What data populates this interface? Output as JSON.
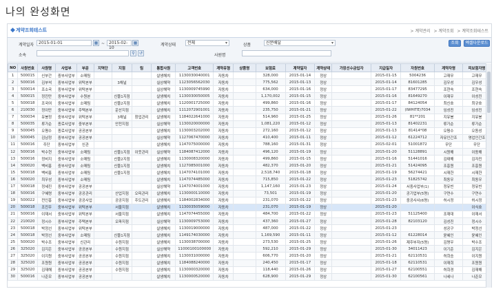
{
  "page_heading": "나의 완성화면",
  "window": {
    "title": "계약조회테스트"
  },
  "breadcrumb": [
    "> 계약관리",
    "> 계약조회",
    "> 계약조회테스트"
  ],
  "search": {
    "contract_date_label": "계약일자",
    "date_from": "2015-01-01",
    "date_to": "2015-02-10",
    "separator": "~",
    "contract_type_label": "계약상태",
    "contract_type_value": "전체",
    "item_label": "상품",
    "item_value": "신문배달",
    "org_label": "소속",
    "agent_label": "사원명",
    "search_button": "조회",
    "excel_button": "엑셀다운로드"
  },
  "table": {
    "columns": [
      "NO",
      "사원번호",
      "사원명",
      "사업부",
      "부문",
      "지역단",
      "지점",
      "팀",
      "통합사원",
      "고객번호",
      "계약유형",
      "상품명",
      "보험료",
      "계약일자",
      "계약상태",
      "가장선수금입자",
      "지급일자",
      "자원번호",
      "계약자명",
      "피보험자명"
    ],
    "rows": [
      [
        "1",
        "500015",
        "신부간",
        "중부사업부",
        "소매팀",
        "",
        "",
        "",
        "살생해치",
        "1130030040001",
        "자동차",
        "",
        "328,000",
        "2015-01-14",
        "정상",
        "",
        "2015-01-15",
        "5004236",
        "고재무",
        "고재무"
      ],
      [
        "2",
        "500016",
        "김부석",
        "중부사업부",
        "위탁본부",
        "",
        "3채널",
        "",
        "실상해약",
        "1123056562030",
        "자동차",
        "",
        "775,562",
        "2015-01-13",
        "정상",
        "",
        "2015-01-14",
        "81601285",
        "김우성",
        "김우성"
      ],
      [
        "3",
        "500014",
        "조소국",
        "중부사업부",
        "위탁본부",
        "",
        "",
        "",
        "실상해약",
        "1130009745990",
        "자동차",
        "",
        "634,000",
        "2015-01-16",
        "정상",
        "",
        "2015-01-17",
        "83477295",
        "조현숙",
        "조현숙"
      ],
      [
        "4",
        "500015",
        "정진만",
        "중부사업부",
        "수원본",
        "",
        "신뜰1지점",
        "",
        "살생해치",
        "1130030050005",
        "자동차",
        "",
        "1,170,002",
        "2015-01-15",
        "정상",
        "",
        "2015-01-16",
        "81649270",
        "이재우",
        "이성진"
      ],
      [
        "5",
        "500018",
        "조국여",
        "중부사업부",
        "소매팀",
        "",
        "신뜰2지점",
        "",
        "살생해치",
        "1120001725000",
        "자동차",
        "",
        "499,860",
        "2015-01-16",
        "정상",
        "",
        "2015-01-17",
        "84124054",
        "최신호",
        "최규호"
      ],
      [
        "6",
        "210030",
        "정이만",
        "중부사업부",
        "주택본부",
        "",
        "운산지점",
        "",
        "살생해치",
        "1112072901001",
        "자동차",
        "",
        "235,750",
        "2015-01-21",
        "정상",
        "",
        "2015-01-22",
        "(IWHITE)7034",
        "임성진",
        "임성진"
      ],
      [
        "7",
        "500034",
        "유봉정",
        "중부사업부",
        "위탁본부",
        "",
        "3채널",
        "창업관리",
        "살생해치",
        "1184022641000",
        "자동차",
        "",
        "514,960",
        "2015-01-25",
        "정상",
        "",
        "2015-01-26",
        "81**201",
        "지유봉",
        "지유봉"
      ],
      [
        "8",
        "500035",
        "류가순",
        "종로사업부",
        "중부본부",
        "",
        "안전지점",
        "",
        "실상해약",
        "1130020000000",
        "자동차",
        "",
        "1,081,220",
        "2015-01-12",
        "정상",
        "",
        "2015-01-13",
        "81402231",
        "류가순",
        "류가순"
      ],
      [
        "9",
        "500045",
        "오평수",
        "종로사업부",
        "공공본부",
        "",
        "",
        "",
        "살생해치",
        "1130003202000",
        "자동차",
        "",
        "272,160",
        "2015-01-12",
        "정상",
        "",
        "2015-01-13",
        "81414*08",
        "오평수",
        "오동성"
      ],
      [
        "10",
        "500045",
        "김남정",
        "중부사업부",
        "공공본부",
        "",
        "",
        "",
        "실상해약",
        "1127067470000",
        "자동차",
        "",
        "410,400",
        "2015-01-11",
        "정상",
        "",
        "2015-01-12",
        "61224712",
        "자유인간조",
        "영업인간조"
      ],
      [
        "11",
        "500016",
        "주단",
        "중부사업부",
        "신관",
        "",
        "",
        "",
        "살생해치",
        "1147075000000",
        "자동차",
        "",
        "788,160",
        "2015-01-31",
        "정상",
        "",
        "2015-02-01",
        "51001872",
        "우단",
        "우단"
      ],
      [
        "12",
        "500016",
        "박수현",
        "중부사업부",
        "소매팀",
        "",
        "신뜰1지점",
        "이웃관리",
        "실상해약",
        "1184087412000",
        "자동차",
        "",
        "496,120",
        "2015-01-19",
        "정상",
        "",
        "2015-01-20",
        "51128891",
        "시원해",
        "이동해"
      ],
      [
        "13",
        "500016",
        "정비지",
        "중부사업부",
        "소매팀",
        "",
        "신뜰2지점",
        "",
        "살생해치",
        "1130008320000",
        "자동차",
        "",
        "499,860",
        "2015-01-15",
        "정상",
        "",
        "2015-01-16",
        "51441016",
        "김태해",
        "김자진"
      ],
      [
        "14",
        "500020",
        "백비홍",
        "중부사업부",
        "소매팀",
        "",
        "신뜰1지점",
        "",
        "살생해치",
        "1127085001000",
        "자동차",
        "",
        "482,370",
        "2015-01-20",
        "정상",
        "",
        "2015-01-21",
        "51424095",
        "조흥원",
        "조흥원"
      ],
      [
        "15",
        "500018",
        "백비홍",
        "중부사업부",
        "소매팀",
        "",
        "신뜰1지점",
        "",
        "살생해치",
        "1147074101000",
        "자동차",
        "",
        "2,518,740",
        "2015-01-18",
        "정상",
        "",
        "2015-01-19",
        "56274421",
        "시재한",
        "시재한"
      ],
      [
        "16",
        "500020",
        "최우성",
        "중부사업부",
        "소매팀",
        "",
        "",
        "",
        "살생해치",
        "1147074485000",
        "자동차",
        "",
        "715,850",
        "2015-01-22",
        "정상",
        "",
        "2015-01-23",
        "51825742",
        "최동우",
        "최동우"
      ],
      [
        "17",
        "500018",
        "정세진",
        "중부사업부",
        "공공본부",
        "",
        "",
        "",
        "실상해약",
        "1147074001000",
        "자동차",
        "",
        "1,147,160",
        "2015-01-23",
        "정상",
        "",
        "2015-01-24",
        "서중사업부(1)",
        "정유빈",
        "정유빈"
      ],
      [
        "18",
        "500016",
        "구혜령",
        "중부사업부",
        "공공관리",
        "",
        "산업지점",
        "오피관리",
        "살생해치",
        "1130000110000",
        "자동차",
        "",
        "73,501",
        "2015-01-19",
        "정상",
        "",
        "2015-01-20",
        "공기업부(5명)",
        "구연수",
        "구연수"
      ],
      [
        "19",
        "500022",
        "전인흥",
        "중부사업부",
        "공공사업",
        "",
        "공공지점",
        "주도관리",
        "살생해치",
        "1184002834000",
        "자동차",
        "",
        "231,070",
        "2015-01-22",
        "정상",
        "",
        "2015-01-23",
        "중공사사(6명)",
        "허시정",
        "허시정"
      ],
      [
        "20",
        "500018",
        "조진우",
        "중부사업부",
        "위탁본부",
        "",
        "서울지점",
        "",
        "살생해치",
        "1130035059000",
        "자동차",
        "",
        "231,070",
        "2015-01-19",
        "정상",
        "",
        "2015-01-20",
        "",
        "",
        "이식호"
      ],
      [
        "21",
        "500016",
        "이재서",
        "중부사업부",
        "위탁본부",
        "",
        "서울지점",
        "",
        "살생해치",
        "1147074455000",
        "자동차",
        "",
        "484,700",
        "2015-01-22",
        "정상",
        "",
        "2015-01-23",
        "51125400",
        "조재대",
        "이재서"
      ],
      [
        "22",
        "210020",
        "정시수",
        "중부사업부",
        "주택본부",
        "",
        "오파지점",
        "",
        "실상해약",
        "1130009753000",
        "자동차",
        "",
        "437,360",
        "2015-01-27",
        "정상",
        "",
        "2015-01-28",
        "82103120",
        "김성진",
        "정시수"
      ],
      [
        "23",
        "500018",
        "박정선",
        "중부사업부",
        "위탁본부",
        "",
        "",
        "",
        "살생해치",
        "1130019000000",
        "자동차",
        "",
        "487,000",
        "2015-01-22",
        "정상",
        "",
        "2015-01-23",
        "",
        "성공구",
        "박정선"
      ],
      [
        "24",
        "500018",
        "박정선",
        "중부사업부",
        "소매팀",
        "",
        "신뜰1지점",
        "",
        "살생해치",
        "1149174030000",
        "자동차",
        "",
        "1,169,590",
        "2015-01-11",
        "정상",
        "",
        "2015-01-12",
        "61228014",
        "윤혜인",
        "윤혜인"
      ],
      [
        "25",
        "500020",
        "박수조",
        "중부사업부",
        "신관리",
        "",
        "수원지점",
        "",
        "살생해치",
        "1130038700000",
        "자동차",
        "",
        "273,530",
        "2015-01-25",
        "정상",
        "",
        "2015-01-26",
        "제주부자(5명)",
        "김명우",
        "박수조"
      ],
      [
        "26",
        "325020",
        "김지은",
        "중부사업부",
        "공공본부",
        "",
        "수원지점",
        "",
        "실상해약",
        "11000100100000",
        "자동차",
        "",
        "592,210",
        "2015-01-29",
        "정상",
        "",
        "2015-01-30",
        "34011423",
        "이기준",
        "김지은"
      ],
      [
        "27",
        "325020",
        "이지원",
        "중부사업부",
        "공공본부",
        "",
        "수원지점",
        "",
        "살생해치",
        "1130031000000",
        "자동차",
        "",
        "606,770",
        "2015-01-20",
        "정상",
        "",
        "2015-01-21",
        "62110531",
        "허희승",
        "이지원"
      ],
      [
        "28",
        "325020",
        "조원원",
        "중부사업부",
        "공공본부",
        "",
        "수원지점",
        "",
        "살생해치",
        "1184088240000",
        "자동차",
        "",
        "240,450",
        "2015-01-17",
        "정상",
        "",
        "2015-01-18",
        "62110531",
        "이재희",
        "조원원"
      ],
      [
        "29",
        "325020",
        "김재해",
        "중부사업부",
        "공공본부",
        "",
        "수원지점",
        "",
        "살생해치",
        "1130000320000",
        "자동차",
        "",
        "118,440",
        "2015-01-26",
        "정상",
        "",
        "2015-01-27",
        "62100551",
        "허희경",
        "김재해"
      ],
      [
        "30",
        "500016",
        "나준모",
        "중부사업부",
        "공공본부",
        "",
        "",
        "",
        "살생해치",
        "1130000520000",
        "자동차",
        "",
        "628,900",
        "2015-01-29",
        "정상",
        "",
        "2015-01-30",
        "62100561",
        "나세나",
        "나준모"
      ]
    ],
    "selected_row": 19
  }
}
